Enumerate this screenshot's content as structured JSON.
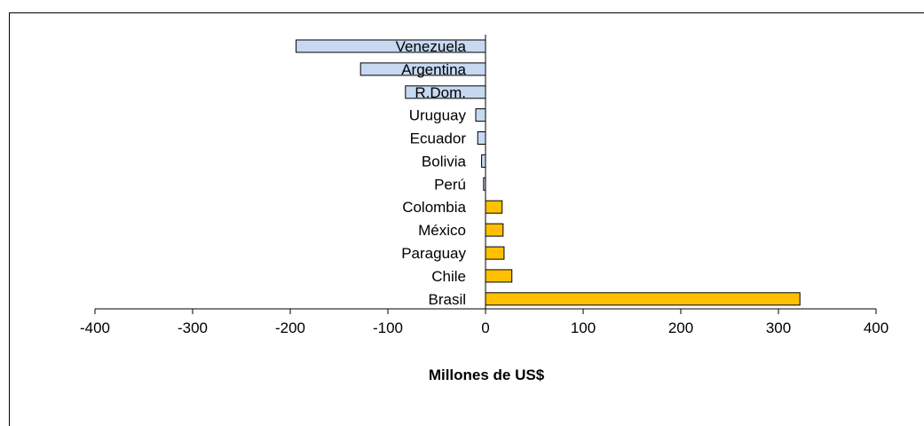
{
  "chart_data": {
    "type": "bar",
    "orientation": "horizontal",
    "categories": [
      "Venezuela",
      "Argentina",
      "R.Dom.",
      "Uruguay",
      "Ecuador",
      "Bolivia",
      "Perú",
      "Colombia",
      "México",
      "Paraguay",
      "Chile",
      "Brasil"
    ],
    "values": [
      -194,
      -128,
      -82,
      -10,
      -8,
      -4,
      -2,
      17,
      18,
      19,
      27,
      322
    ],
    "xlabel": "Millones de US$",
    "xlim": [
      -400,
      400
    ],
    "xticks": [
      -400,
      -300,
      -200,
      -100,
      0,
      100,
      200,
      300,
      400
    ],
    "grid": false,
    "colors": {
      "negative": "#c6d9f1",
      "positive": "#ffc000",
      "outline": "#000000"
    }
  }
}
